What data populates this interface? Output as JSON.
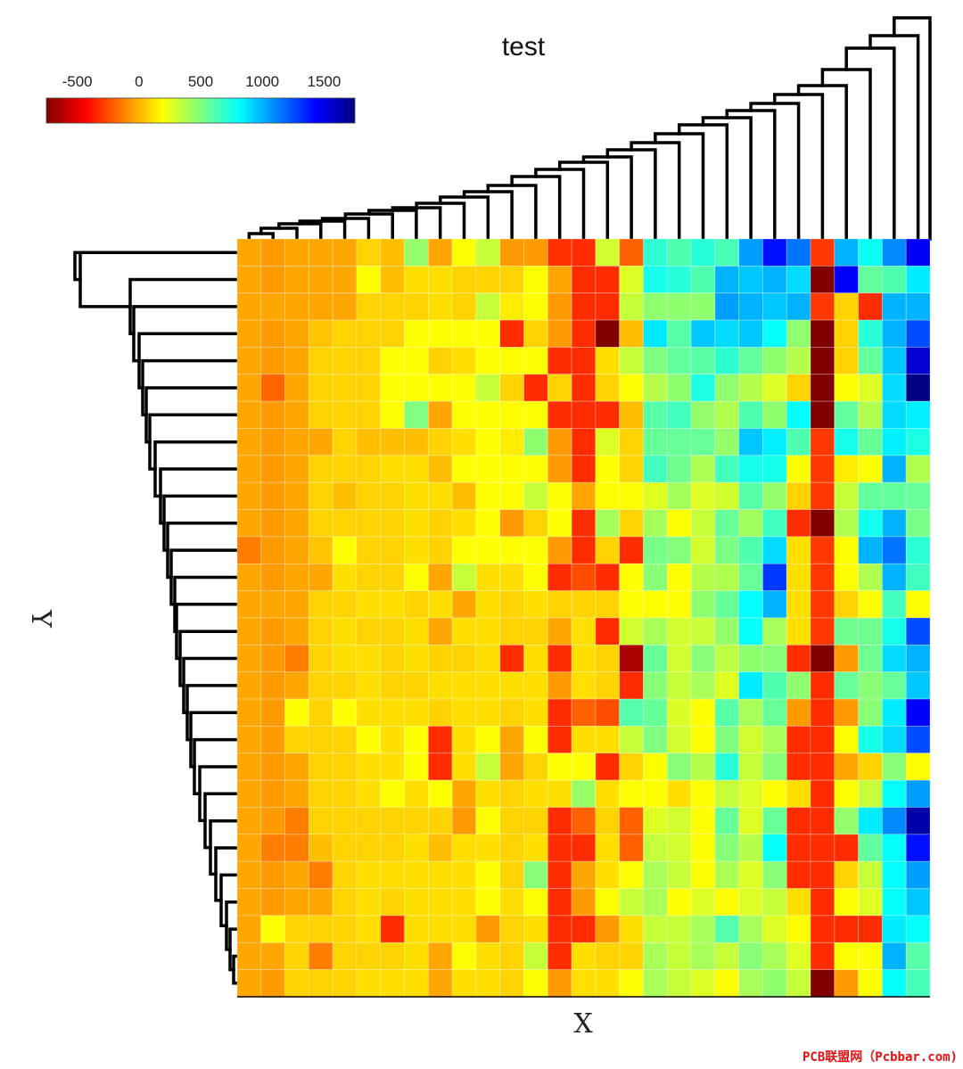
{
  "watermark": "PCB联盟网（Pcbbar.com)",
  "chart_data": {
    "type": "heatmap",
    "title": "test",
    "xlabel": "X",
    "ylabel": "Y",
    "colormap": "jet",
    "colorbar": {
      "placement": "top-left",
      "clim": [
        -750,
        1750
      ],
      "ticks": [
        -500,
        0,
        500,
        1000,
        1500
      ],
      "tick_labels": [
        "-500",
        "0",
        "500",
        "1000",
        "1500"
      ]
    },
    "row_dendrogram": true,
    "column_dendrogram": true,
    "n_rows": 28,
    "n_cols": 29,
    "values": [
      [
        -30,
        -60,
        -30,
        -30,
        -30,
        80,
        30,
        450,
        -30,
        190,
        330,
        -60,
        -60,
        -320,
        -330,
        300,
        -200,
        700,
        620,
        720,
        630,
        1050,
        1400,
        1150,
        -300,
        1000,
        790,
        1100,
        1460
      ],
      [
        -30,
        -60,
        -30,
        -30,
        -30,
        190,
        30,
        110,
        110,
        80,
        80,
        80,
        190,
        -30,
        -330,
        -330,
        270,
        760,
        720,
        620,
        1000,
        950,
        1000,
        900,
        -750,
        1450,
        570,
        620,
        860
      ],
      [
        -30,
        -30,
        -30,
        -30,
        -30,
        80,
        80,
        80,
        110,
        80,
        330,
        140,
        190,
        -60,
        -330,
        -330,
        330,
        460,
        460,
        460,
        1050,
        1000,
        950,
        1000,
        -300,
        80,
        -330,
        1000,
        1000
      ],
      [
        -30,
        -60,
        -30,
        40,
        80,
        80,
        80,
        190,
        190,
        190,
        190,
        -330,
        80,
        -60,
        -330,
        -750,
        30,
        870,
        600,
        950,
        900,
        950,
        800,
        460,
        -750,
        80,
        720,
        1000,
        1250
      ],
      [
        -30,
        -60,
        -30,
        80,
        80,
        80,
        190,
        190,
        80,
        110,
        190,
        190,
        190,
        -330,
        -330,
        110,
        330,
        500,
        570,
        590,
        700,
        570,
        460,
        370,
        -750,
        80,
        570,
        950,
        1550
      ],
      [
        -30,
        -190,
        -30,
        80,
        80,
        80,
        190,
        190,
        190,
        190,
        330,
        80,
        -330,
        80,
        -330,
        80,
        190,
        370,
        460,
        750,
        460,
        370,
        270,
        80,
        -750,
        190,
        270,
        900,
        1750
      ],
      [
        -30,
        -60,
        -30,
        80,
        80,
        80,
        190,
        500,
        -30,
        190,
        190,
        190,
        190,
        -330,
        -330,
        -330,
        30,
        600,
        650,
        450,
        380,
        620,
        460,
        810,
        -750,
        570,
        380,
        900,
        850
      ],
      [
        -30,
        -60,
        -30,
        -30,
        80,
        30,
        30,
        30,
        80,
        110,
        190,
        140,
        460,
        -60,
        -330,
        270,
        80,
        560,
        560,
        560,
        450,
        950,
        850,
        620,
        -300,
        760,
        560,
        850,
        750
      ],
      [
        -30,
        -60,
        -30,
        80,
        80,
        80,
        110,
        110,
        30,
        190,
        190,
        190,
        190,
        -60,
        -330,
        190,
        80,
        650,
        540,
        390,
        650,
        760,
        760,
        190,
        -300,
        140,
        190,
        1000,
        380
      ],
      [
        -30,
        -60,
        -30,
        80,
        30,
        80,
        80,
        110,
        110,
        30,
        190,
        190,
        330,
        190,
        -30,
        190,
        190,
        270,
        410,
        270,
        300,
        600,
        450,
        80,
        -300,
        330,
        570,
        570,
        560
      ],
      [
        -30,
        -60,
        -30,
        80,
        80,
        80,
        80,
        110,
        80,
        110,
        190,
        -60,
        80,
        190,
        -330,
        410,
        80,
        410,
        190,
        330,
        560,
        420,
        660,
        -330,
        -750,
        380,
        770,
        1000,
        520
      ],
      [
        -130,
        -60,
        -30,
        40,
        190,
        80,
        80,
        110,
        80,
        190,
        190,
        190,
        190,
        -60,
        -330,
        80,
        -330,
        520,
        490,
        300,
        510,
        620,
        900,
        110,
        -300,
        190,
        1000,
        1150,
        710
      ],
      [
        -30,
        -60,
        -30,
        -30,
        110,
        80,
        80,
        190,
        -30,
        330,
        110,
        110,
        190,
        -330,
        -250,
        -330,
        190,
        480,
        190,
        370,
        380,
        560,
        1300,
        110,
        -300,
        190,
        380,
        1000,
        660
      ],
      [
        -30,
        -30,
        -30,
        80,
        80,
        110,
        110,
        80,
        110,
        -30,
        110,
        80,
        110,
        80,
        80,
        80,
        190,
        190,
        190,
        460,
        560,
        810,
        1000,
        110,
        -300,
        80,
        190,
        650,
        190
      ],
      [
        -30,
        -60,
        -30,
        80,
        110,
        80,
        80,
        110,
        -30,
        110,
        110,
        80,
        80,
        -30,
        110,
        -330,
        300,
        400,
        300,
        320,
        450,
        800,
        400,
        110,
        -300,
        540,
        540,
        760,
        1250
      ],
      [
        -30,
        -60,
        -130,
        80,
        110,
        110,
        80,
        110,
        80,
        80,
        110,
        -330,
        110,
        -330,
        110,
        80,
        -650,
        560,
        300,
        480,
        350,
        460,
        480,
        -330,
        -750,
        -60,
        540,
        900,
        1000
      ],
      [
        -30,
        -60,
        -30,
        80,
        80,
        110,
        80,
        80,
        110,
        110,
        110,
        110,
        110,
        -60,
        110,
        80,
        -330,
        480,
        330,
        400,
        270,
        860,
        620,
        460,
        -330,
        560,
        480,
        560,
        950
      ],
      [
        -30,
        -60,
        190,
        80,
        190,
        110,
        110,
        110,
        80,
        110,
        110,
        80,
        110,
        -330,
        -200,
        -250,
        610,
        560,
        280,
        190,
        600,
        400,
        560,
        -60,
        -330,
        -60,
        480,
        860,
        1450
      ],
      [
        -30,
        -60,
        80,
        80,
        80,
        190,
        110,
        190,
        -330,
        110,
        190,
        -30,
        190,
        -330,
        110,
        110,
        330,
        500,
        300,
        190,
        500,
        300,
        400,
        -330,
        -330,
        190,
        760,
        900,
        1250
      ],
      [
        -30,
        -60,
        -30,
        80,
        80,
        110,
        110,
        190,
        -330,
        110,
        330,
        -30,
        80,
        190,
        190,
        -330,
        80,
        190,
        480,
        370,
        720,
        330,
        480,
        -330,
        -330,
        -30,
        80,
        480,
        190
      ],
      [
        -30,
        -60,
        -30,
        80,
        80,
        110,
        190,
        110,
        190,
        -30,
        110,
        80,
        110,
        110,
        440,
        110,
        190,
        190,
        110,
        190,
        330,
        270,
        190,
        110,
        -330,
        190,
        330,
        800,
        1050
      ],
      [
        -30,
        -60,
        -130,
        80,
        80,
        80,
        80,
        80,
        80,
        -60,
        190,
        80,
        80,
        -330,
        -200,
        80,
        -200,
        270,
        300,
        190,
        560,
        270,
        560,
        -330,
        -330,
        450,
        860,
        1100,
        1650
      ],
      [
        -30,
        -130,
        -130,
        30,
        80,
        80,
        80,
        110,
        30,
        110,
        110,
        80,
        110,
        -330,
        -330,
        110,
        -200,
        330,
        300,
        190,
        480,
        370,
        800,
        -330,
        -330,
        -330,
        570,
        800,
        1400
      ],
      [
        -30,
        -60,
        -30,
        -130,
        80,
        110,
        110,
        110,
        110,
        110,
        190,
        80,
        480,
        -330,
        -30,
        110,
        190,
        400,
        330,
        190,
        390,
        270,
        480,
        -330,
        -330,
        80,
        330,
        810,
        1050
      ],
      [
        -30,
        -60,
        -30,
        -30,
        80,
        110,
        80,
        110,
        110,
        110,
        190,
        110,
        190,
        -330,
        -60,
        190,
        330,
        400,
        190,
        270,
        190,
        270,
        330,
        110,
        -330,
        190,
        270,
        800,
        950
      ],
      [
        -30,
        190,
        80,
        80,
        80,
        110,
        -330,
        110,
        110,
        110,
        -60,
        80,
        110,
        -330,
        -330,
        -60,
        110,
        330,
        330,
        400,
        610,
        400,
        270,
        190,
        -330,
        -330,
        -330,
        860,
        800
      ],
      [
        -30,
        -30,
        80,
        -130,
        80,
        80,
        80,
        110,
        -30,
        190,
        110,
        80,
        330,
        -330,
        110,
        80,
        80,
        400,
        330,
        400,
        330,
        480,
        400,
        270,
        -330,
        190,
        190,
        1000,
        600
      ],
      [
        -30,
        -60,
        80,
        80,
        80,
        110,
        110,
        110,
        -30,
        110,
        110,
        80,
        190,
        -60,
        110,
        110,
        190,
        400,
        330,
        270,
        190,
        400,
        460,
        330,
        -750,
        -60,
        190,
        800,
        640
      ]
    ]
  }
}
